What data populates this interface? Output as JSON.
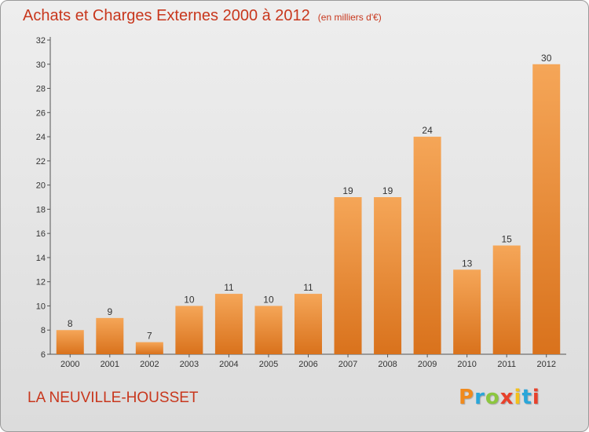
{
  "header": {
    "title": "Achats et Charges Externes 2000 à 2012",
    "subtitle": "(en milliers d'€)"
  },
  "footer": {
    "commune": "LA NEUVILLE-HOUSSET",
    "logo": {
      "text": "Proxiti",
      "letter_colors": [
        "#f08a1c",
        "#2aa6d9",
        "#8cc63f",
        "#e8412b",
        "#f3c01b",
        "#2aa6d9",
        "#e8412b"
      ]
    }
  },
  "colors": {
    "title": "#c8371d",
    "bar_top": "#f5a658",
    "bar_bottom": "#d9721c",
    "axis": "#555555"
  },
  "chart_data": {
    "type": "bar",
    "title": "Achats et Charges Externes 2000 à 2012",
    "subtitle": "(en milliers d'€)",
    "xlabel": "",
    "ylabel": "",
    "categories": [
      "2000",
      "2001",
      "2002",
      "2003",
      "2004",
      "2005",
      "2006",
      "2007",
      "2008",
      "2009",
      "2010",
      "2011",
      "2012"
    ],
    "values": [
      8,
      9,
      7,
      10,
      11,
      10,
      11,
      19,
      19,
      24,
      13,
      15,
      30
    ],
    "ylim": [
      6,
      32
    ],
    "yticks": [
      6,
      8,
      10,
      12,
      14,
      16,
      18,
      20,
      22,
      24,
      26,
      28,
      30,
      32
    ],
    "grid": false,
    "legend": "none"
  }
}
